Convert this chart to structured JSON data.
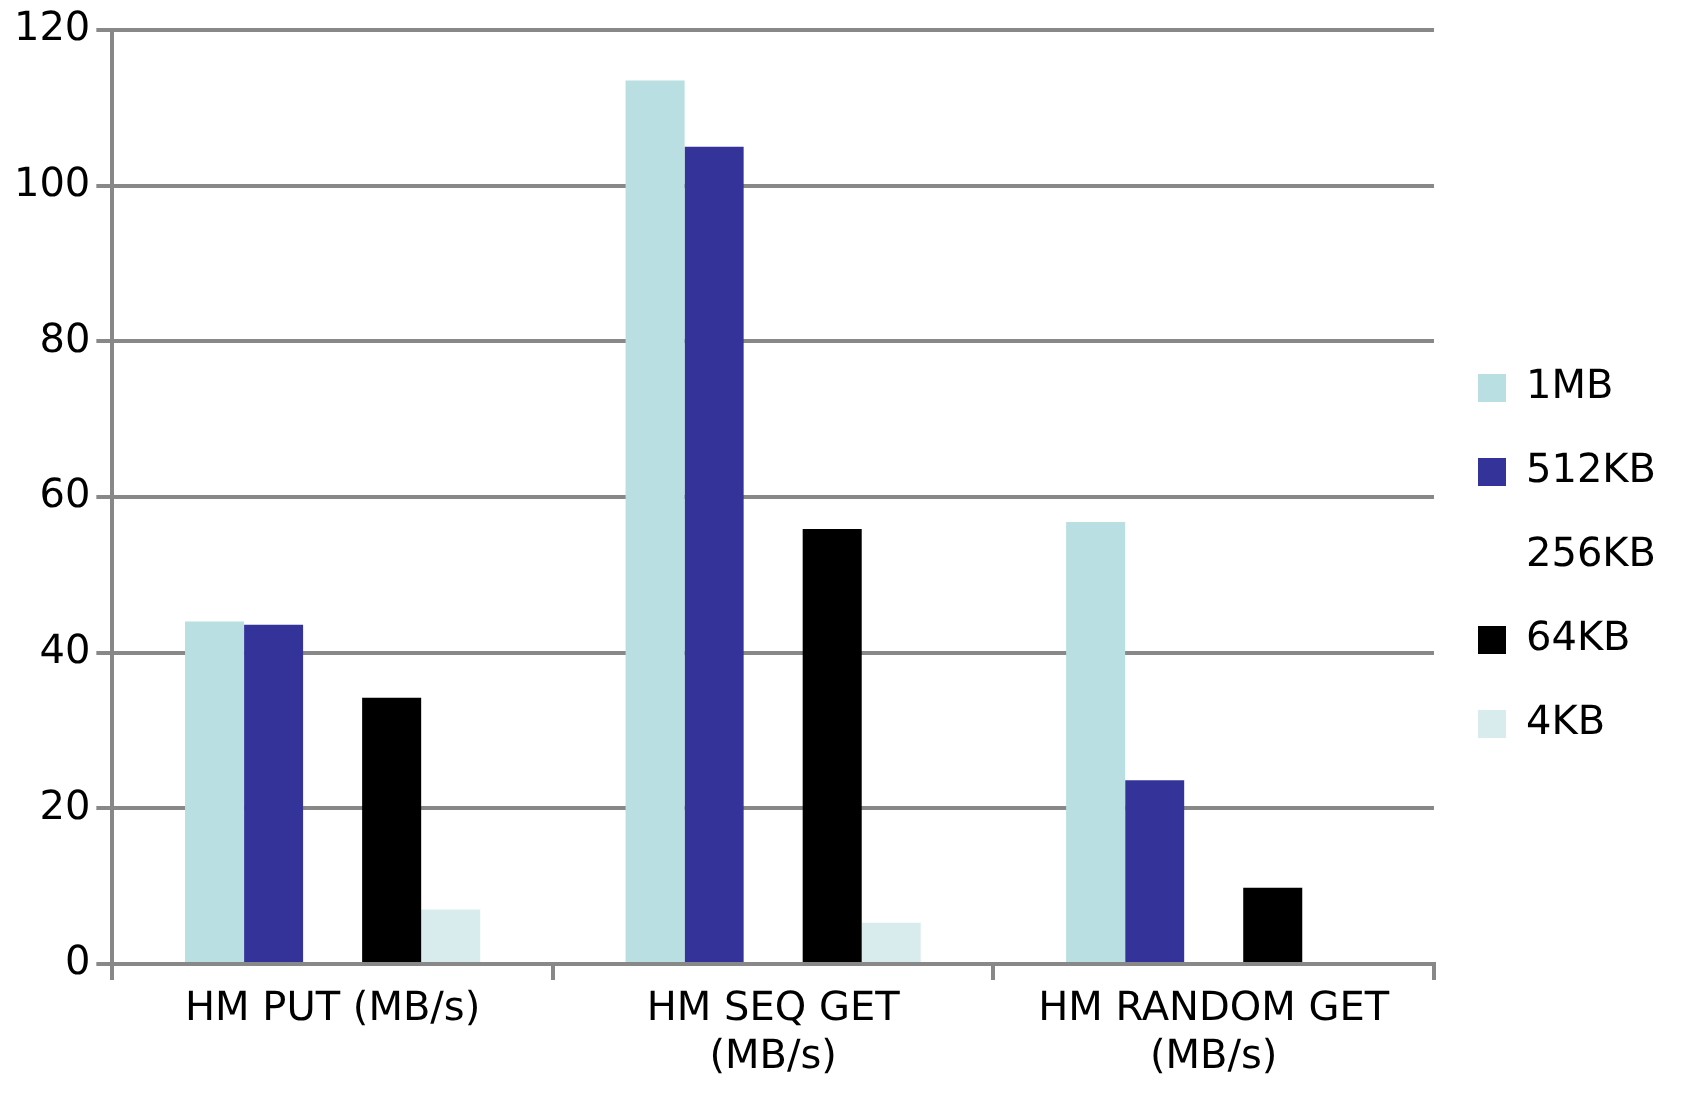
{
  "chart_data": {
    "type": "bar",
    "categories": [
      "HM PUT (MB/s)",
      "HM SEQ GET (MB/s)",
      "HM RANDOM GET (MB/s)"
    ],
    "series": [
      {
        "name": "1MB",
        "color": "#b9dfe2",
        "values": [
          44,
          113.5,
          56.8
        ]
      },
      {
        "name": "512KB",
        "color": "#343399",
        "values": [
          43.6,
          105,
          23.6
        ]
      },
      {
        "name": "256KB",
        "values": [
          null,
          null,
          null
        ]
      },
      {
        "name": "64KB",
        "color": "#000000",
        "values": [
          34.2,
          55.9,
          9.8
        ]
      },
      {
        "name": "4KB",
        "color": "#d8ecee",
        "values": [
          7,
          5.3,
          null
        ]
      }
    ],
    "ylim": [
      0,
      120
    ],
    "yticks": [
      0,
      20,
      40,
      60,
      80,
      100,
      120
    ],
    "grid": "y",
    "legend": "right"
  }
}
